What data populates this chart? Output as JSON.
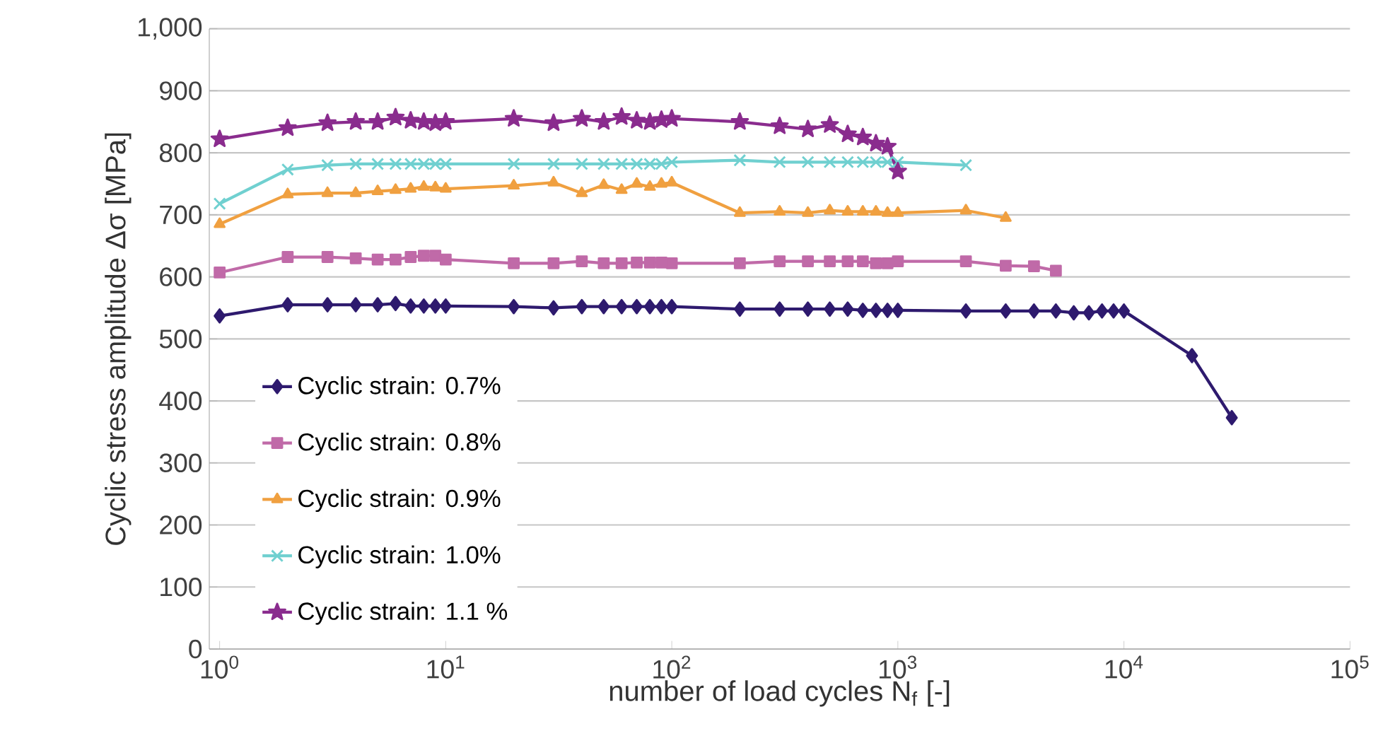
{
  "chart_data": {
    "type": "line",
    "xlabel": "number of load cycles N$_{f}$ [-]",
    "ylabel": "Cyclic stress amplitude Δσ [MPa]",
    "log": "x",
    "xlim": [
      0.9,
      100000
    ],
    "ylim": [
      0,
      1000
    ],
    "xticks": [
      {
        "value": 1,
        "label": "10$^{0}$"
      },
      {
        "value": 10,
        "label": "10$^{1}$"
      },
      {
        "value": 100,
        "label": "10$^{2}$"
      },
      {
        "value": 1000,
        "label": "10$^{3}$"
      },
      {
        "value": 10000,
        "label": "10$^{4}$"
      },
      {
        "value": 100000,
        "label": "10$^{5}$"
      }
    ],
    "yticks": [
      0,
      100,
      200,
      300,
      400,
      500,
      600,
      700,
      800,
      900,
      {
        "value": 1000,
        "label": "1,000"
      }
    ],
    "grid": "y",
    "legend": "bottom left",
    "line_style": "solid",
    "series": [
      {
        "name": "Cyclic strain: 0.7%",
        "color": "#2e1a6e",
        "marker": "diamond",
        "x": [
          1,
          2,
          3,
          4,
          5,
          6,
          7,
          8,
          9,
          10,
          20,
          30,
          40,
          50,
          60,
          70,
          80,
          90,
          100,
          200,
          300,
          400,
          500,
          600,
          700,
          800,
          900,
          1000,
          2000,
          3000,
          4000,
          5000,
          6000,
          7000,
          8000,
          9000,
          10000,
          20000,
          30000
        ],
        "values": [
          537,
          555,
          555,
          555,
          555,
          557,
          553,
          553,
          553,
          553,
          552,
          550,
          552,
          552,
          552,
          552,
          552,
          552,
          552,
          548,
          548,
          548,
          548,
          548,
          546,
          546,
          546,
          546,
          545,
          545,
          545,
          545,
          542,
          542,
          545,
          545,
          545,
          473,
          373
        ]
      },
      {
        "name": "Cyclic strain: 0.8%",
        "color": "#c06aa8",
        "marker": "square",
        "x": [
          1,
          2,
          3,
          4,
          5,
          6,
          7,
          8,
          9,
          10,
          20,
          30,
          40,
          50,
          60,
          70,
          80,
          90,
          100,
          200,
          300,
          400,
          500,
          600,
          700,
          800,
          900,
          1000,
          2000,
          3000,
          4000,
          5000
        ],
        "values": [
          607,
          632,
          632,
          630,
          628,
          628,
          632,
          634,
          634,
          628,
          622,
          622,
          625,
          622,
          622,
          623,
          623,
          623,
          622,
          622,
          625,
          625,
          625,
          625,
          625,
          622,
          622,
          625,
          625,
          618,
          617,
          610
        ]
      },
      {
        "name": "Cyclic strain: 0.9%",
        "color": "#f0a040",
        "marker": "triangle",
        "x": [
          1,
          2,
          3,
          4,
          5,
          6,
          7,
          8,
          9,
          10,
          20,
          30,
          40,
          50,
          60,
          70,
          80,
          90,
          100,
          200,
          300,
          400,
          500,
          600,
          700,
          800,
          900,
          1000,
          2000,
          3000
        ],
        "values": [
          685,
          733,
          735,
          735,
          738,
          740,
          742,
          745,
          744,
          742,
          747,
          752,
          735,
          748,
          740,
          750,
          745,
          750,
          752,
          703,
          705,
          703,
          707,
          705,
          705,
          705,
          703,
          703,
          707,
          695
        ]
      },
      {
        "name": "Cyclic strain: 1.0%",
        "color": "#70d0d0",
        "marker": "cross",
        "x": [
          1,
          2,
          3,
          4,
          5,
          6,
          7,
          8,
          9,
          10,
          20,
          30,
          40,
          50,
          60,
          70,
          80,
          90,
          100,
          200,
          300,
          400,
          500,
          600,
          700,
          800,
          900,
          1000,
          2000
        ],
        "values": [
          718,
          773,
          780,
          782,
          782,
          782,
          782,
          782,
          782,
          782,
          782,
          782,
          782,
          782,
          782,
          782,
          782,
          782,
          785,
          788,
          785,
          785,
          785,
          785,
          785,
          785,
          785,
          785,
          780
        ]
      },
      {
        "name": "Cyclic strain: 1.1 %",
        "color": "#8a2c8e",
        "marker": "star",
        "x": [
          1,
          2,
          3,
          4,
          5,
          6,
          7,
          8,
          9,
          10,
          20,
          30,
          40,
          50,
          60,
          70,
          80,
          90,
          100,
          200,
          300,
          400,
          500,
          600,
          700,
          800,
          900,
          1000
        ],
        "values": [
          822,
          840,
          848,
          850,
          850,
          857,
          852,
          850,
          848,
          850,
          855,
          848,
          855,
          850,
          858,
          852,
          850,
          853,
          855,
          850,
          843,
          838,
          845,
          830,
          825,
          815,
          810,
          770
        ]
      }
    ]
  }
}
